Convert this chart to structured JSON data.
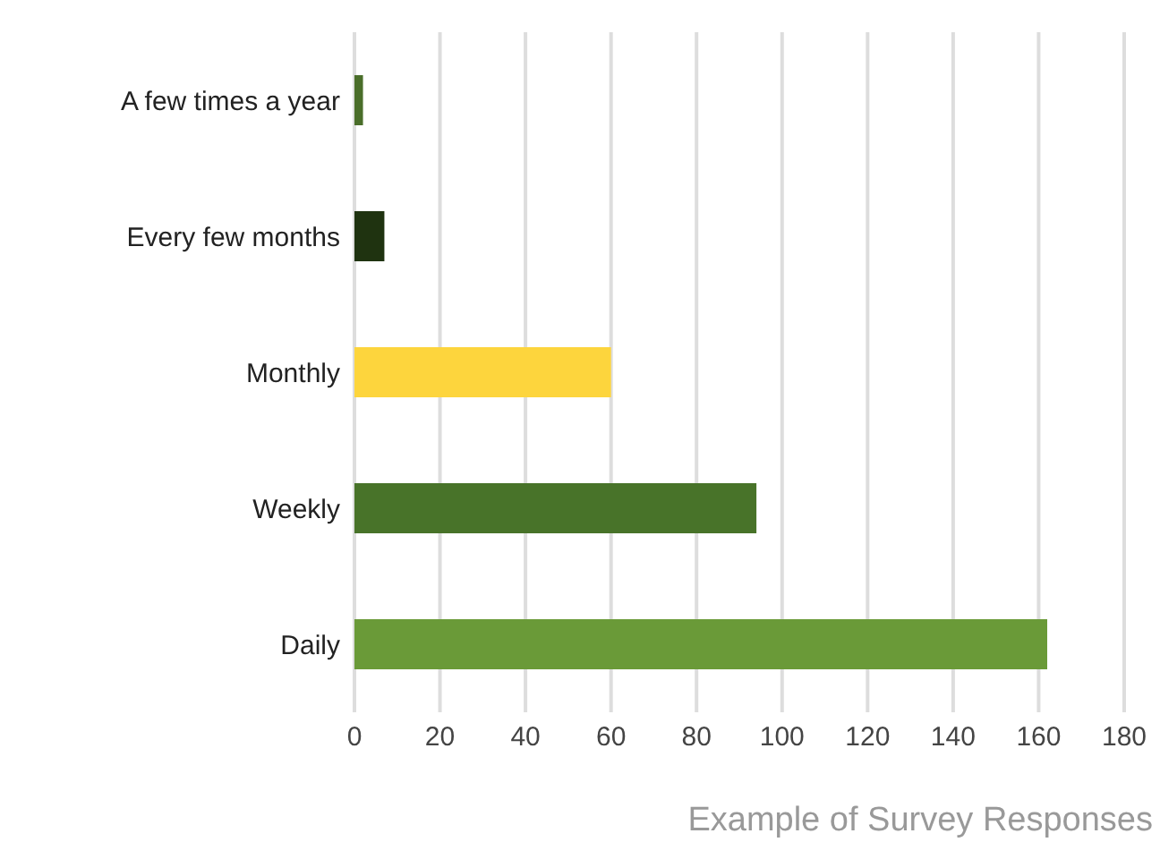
{
  "chart_data": {
    "type": "bar",
    "orientation": "horizontal",
    "categories": [
      "A few times a year",
      "Every few months",
      "Monthly",
      "Weekly",
      "Daily"
    ],
    "values": [
      2,
      7,
      60,
      94,
      162
    ],
    "colors": [
      "#4a6e2a",
      "#1f3310",
      "#fdd53d",
      "#487329",
      "#6a9a38"
    ],
    "xlim": [
      0,
      180
    ],
    "xticks": [
      0,
      20,
      40,
      60,
      80,
      100,
      120,
      140,
      160,
      180
    ],
    "grid": "x",
    "annotations": [
      "Example of Survey Responses"
    ]
  }
}
